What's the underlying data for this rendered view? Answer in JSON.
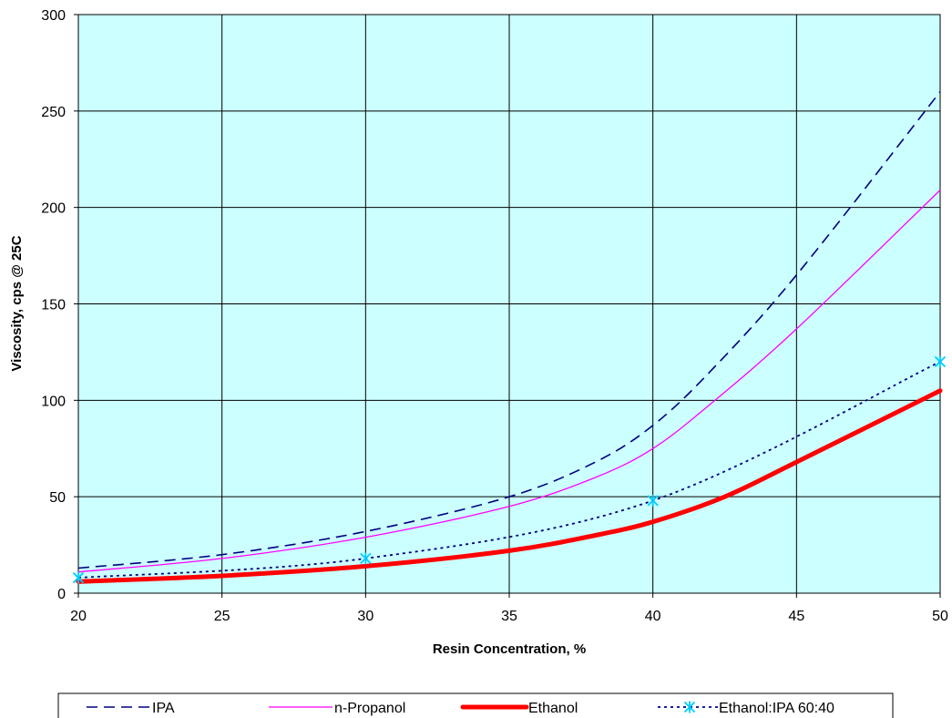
{
  "chart_data": {
    "type": "line",
    "title": "",
    "xlabel": "Resin Concentration, %",
    "ylabel": "Viscosity, cps @ 25C",
    "xlim": [
      20,
      50
    ],
    "ylim": [
      0,
      300
    ],
    "x_ticks": [
      "20",
      "25",
      "30",
      "35",
      "40",
      "45",
      "50"
    ],
    "y_ticks": [
      "0",
      "50",
      "100",
      "150",
      "200",
      "250",
      "300"
    ],
    "grid": true,
    "plot_background": "#ccffff",
    "legend_position": "bottom",
    "series": [
      {
        "name": "IPA",
        "color": "#000080",
        "style": "dashed",
        "x": [
          20,
          25,
          30,
          35,
          38,
          40,
          42,
          45,
          50
        ],
        "y": [
          13,
          20,
          32,
          50,
          68,
          87,
          115,
          165,
          260
        ]
      },
      {
        "name": "n-Propanol",
        "color": "#ff00ff",
        "style": "solid-thin",
        "x": [
          20,
          25,
          30,
          35,
          38,
          40,
          42,
          45,
          50
        ],
        "y": [
          11,
          18,
          29,
          45,
          60,
          75,
          98,
          137,
          209
        ]
      },
      {
        "name": "Ethanol",
        "color": "#ff0000",
        "style": "solid-thick",
        "x": [
          20,
          25,
          30,
          35,
          38,
          40,
          42.5,
          45,
          50
        ],
        "y": [
          6,
          9,
          14,
          22,
          30,
          37,
          50,
          68,
          105
        ]
      },
      {
        "name": "Ethanol:IPA 60:40",
        "color": "#000080",
        "marker_color": "#00ccff",
        "style": "dotted",
        "marker": "star",
        "x": [
          20,
          30,
          40,
          50
        ],
        "y": [
          8,
          18,
          48,
          120
        ]
      }
    ]
  }
}
